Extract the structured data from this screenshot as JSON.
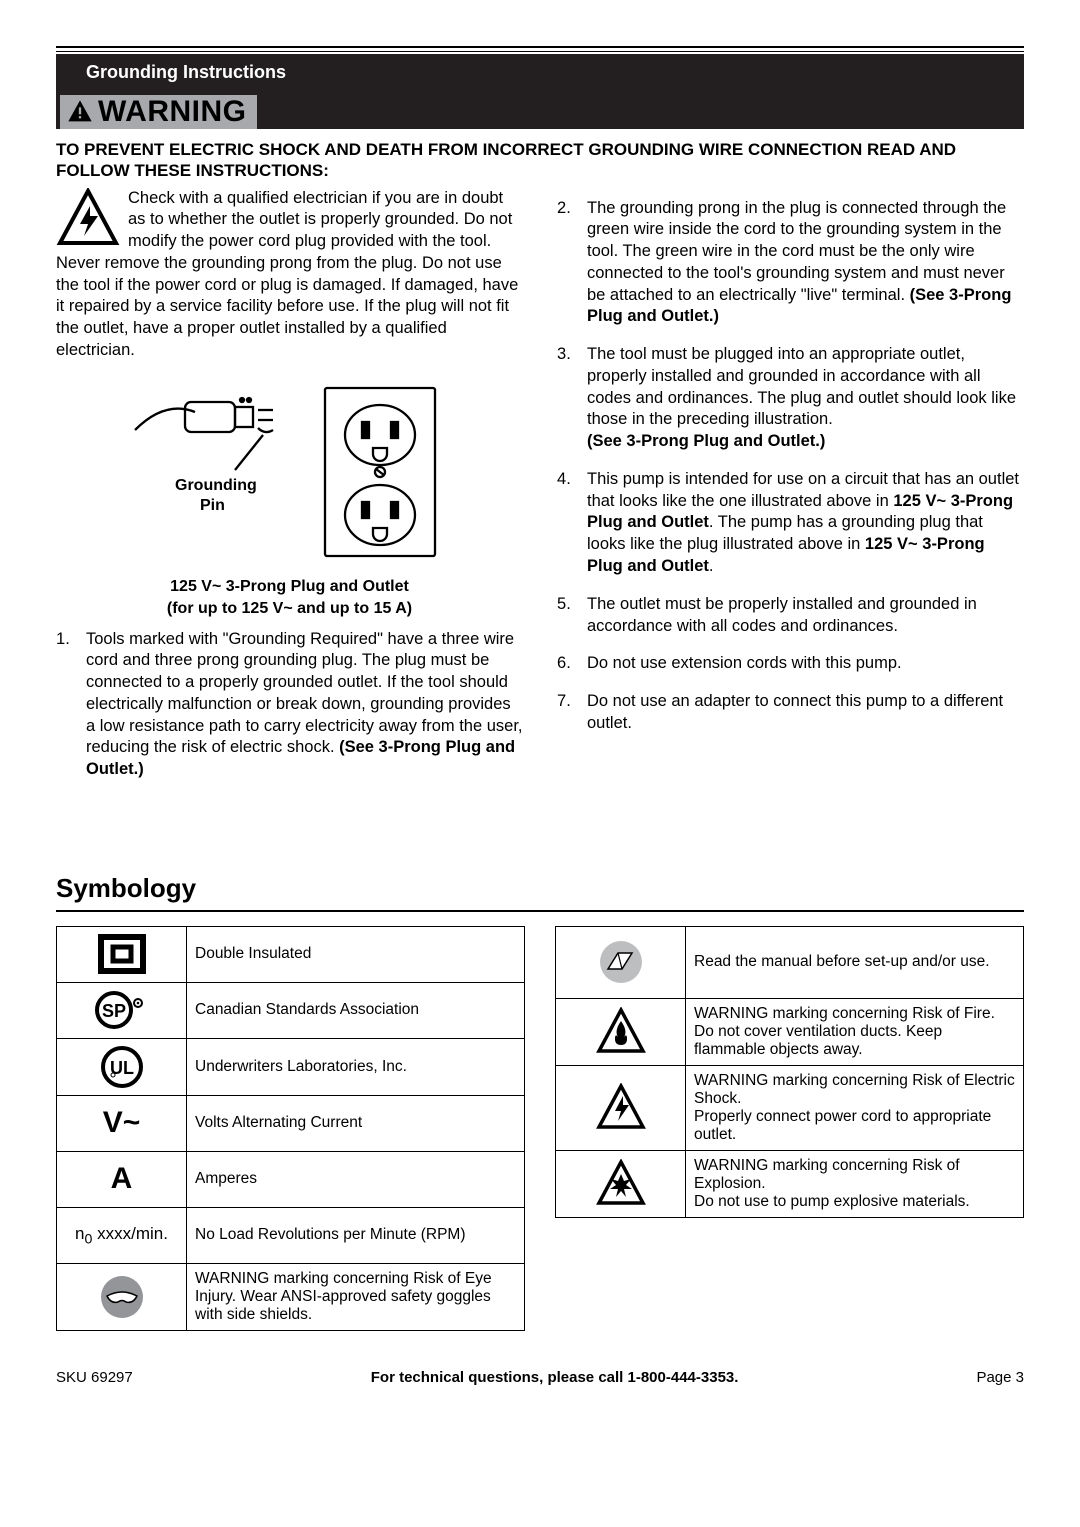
{
  "header": {
    "section_title": "Grounding Instructions",
    "warning_label": "WARNING"
  },
  "warning_block": {
    "headline": "TO PREVENT ELECTRIC SHOCK AND DEATH FROM INCORRECT GROUNDING WIRE CONNECTION READ AND FOLLOW THESE INSTRUCTIONS:",
    "intro": "Check with a qualified electrician if you are in doubt as to whether the outlet is properly grounded.  Do not modify the power cord plug provided with the tool.  Never remove the grounding prong from the plug.  Do not use the tool if the power cord or plug is damaged.  If damaged, have it repaired by a service facility before use.  If the plug will not fit the outlet, have a proper outlet installed by a qualified electrician.",
    "figure": {
      "pin_label": "Grounding Pin",
      "caption_l1": "125 V~ 3-Prong Plug and Outlet",
      "caption_l2": "(for up to 125 V~ and up to 15 A)"
    },
    "left_items": [
      {
        "html": "Tools marked with \"Grounding Required\" have a three wire cord and three prong grounding plug.  The plug must be connected to a properly grounded outlet.  If the tool should electrically malfunction or break down, grounding provides a low resistance path to carry electricity away from the user, reducing the risk of electric shock.  <b>(See 3-Prong Plug and Outlet.)</b>"
      }
    ],
    "right_items": [
      {
        "html": "The grounding prong in the plug is connected through the green wire inside the cord to the grounding system in the tool.  The green wire in the cord must be the only wire connected to the tool's grounding system and must never be attached to an electrically \"live\" terminal.  <b>(See 3-Prong Plug and Outlet.)</b>"
      },
      {
        "html": "The tool must be plugged into an appropriate outlet, properly installed and grounded in accordance with all codes and ordinances.  The plug and outlet should look like those in the preceding illustration.<br><b>(See 3-Prong Plug and Outlet.)</b>"
      },
      {
        "html": "This pump is intended for use on a circuit that has an outlet that looks like the one illustrated above in <b>125 V~ 3-Prong Plug and Outlet</b>.  The pump has a grounding plug that looks like the plug illustrated above in <b>125 V~ 3-Prong Plug and Outlet</b>."
      },
      {
        "html": "The outlet must be properly installed and grounded in accordance with all codes and ordinances."
      },
      {
        "html": "Do not use extension cords with this pump."
      },
      {
        "html": "Do not use an adapter to connect this pump to a different outlet."
      }
    ]
  },
  "symbology": {
    "title": "Symbology",
    "left": [
      {
        "icon": "double-insulated",
        "text": "Double Insulated"
      },
      {
        "icon": "csa",
        "text": "Canadian Standards Association"
      },
      {
        "icon": "ul",
        "text": "Underwriters Laboratories, Inc."
      },
      {
        "icon": "vac",
        "text": "Volts Alternating Current"
      },
      {
        "icon": "amp",
        "text": "Amperes"
      },
      {
        "icon": "rpm",
        "text": "No Load Revolutions per Minute (RPM)"
      },
      {
        "icon": "goggles",
        "text": "WARNING marking concerning Risk of Eye Injury.  Wear ANSI-approved safety goggles with side shields."
      }
    ],
    "right": [
      {
        "icon": "manual",
        "text": "Read the manual before set-up and/or use."
      },
      {
        "icon": "fire",
        "text": "WARNING marking concerning Risk of Fire.\nDo not cover ventilation ducts.  Keep flammable objects away."
      },
      {
        "icon": "shock",
        "text": "WARNING marking concerning Risk of Electric Shock.\nProperly connect power cord to appropriate outlet."
      },
      {
        "icon": "explosion",
        "text": "WARNING marking concerning Risk of Explosion.\nDo not use to pump explosive materials."
      }
    ]
  },
  "footer": {
    "left": "SKU 69297",
    "mid": "For technical questions, please call 1-800-444-3353.",
    "right": "Page 3"
  },
  "colors": {
    "bar_bg": "#231f20",
    "pill_bg": "#a7a9ac",
    "text": "#000000",
    "page_bg": "#ffffff"
  }
}
